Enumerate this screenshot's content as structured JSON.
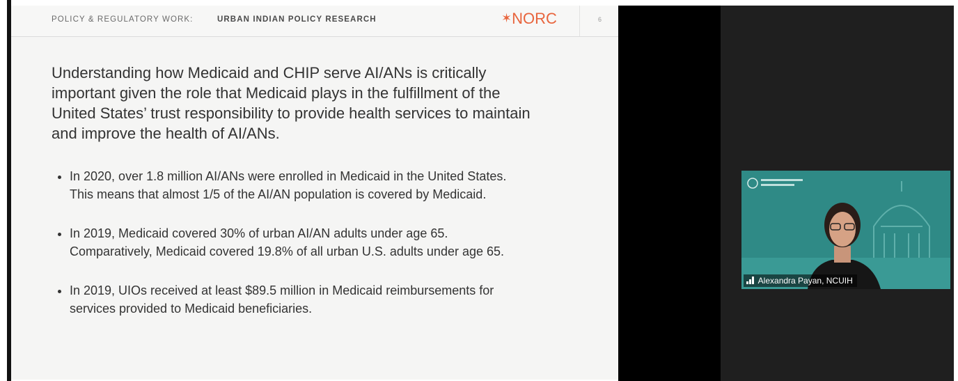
{
  "header": {
    "section": "POLICY & REGULATORY WORK:",
    "title": "URBAN INDIAN POLICY RESEARCH",
    "logo": "NORC",
    "page_number": "6"
  },
  "intro": "Understanding how Medicaid and CHIP serve AI/ANs is critically important given the role that Medicaid plays in the fulfillment of the United States’ trust responsibility to provide health services to maintain and improve the health of AI/ANs.",
  "bullets": [
    "In 2020, over 1.8 million AI/ANs were enrolled in Medicaid in the United States. This means that almost 1/5 of the AI/AN population is covered by Medicaid.",
    "In 2019, Medicaid covered 30% of urban AI/AN adults under age 65. Comparatively, Medicaid covered 19.8% of all urban U.S. adults under age 65.",
    "In 2019, UIOs received at least $89.5 million in Medicaid reimbursements for services provided to Medicaid beneficiaries."
  ],
  "participant": {
    "name": "Alexandra Payan, NCUIH"
  }
}
